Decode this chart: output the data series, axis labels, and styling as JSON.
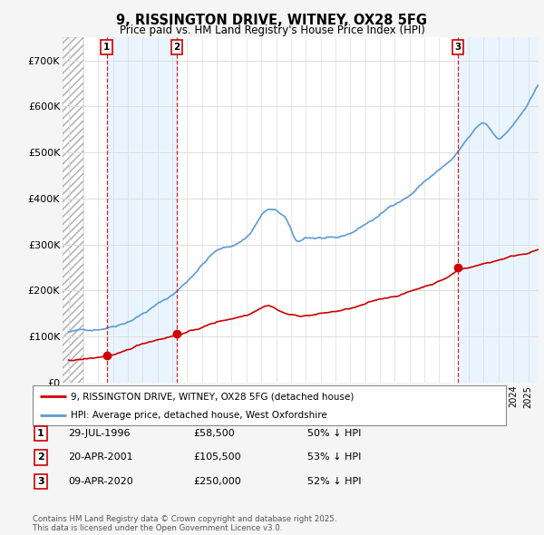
{
  "title": "9, RISSINGTON DRIVE, WITNEY, OX28 5FG",
  "subtitle": "Price paid vs. HM Land Registry's House Price Index (HPI)",
  "background_color": "#f5f5f5",
  "plot_bg_color": "#ffffff",
  "band_color": "#ddeeff",
  "hatch_color": "#cccccc",
  "ylim": [
    0,
    750000
  ],
  "yticks": [
    0,
    100000,
    200000,
    300000,
    400000,
    500000,
    600000,
    700000
  ],
  "ytick_labels": [
    "£0",
    "£100K",
    "£200K",
    "£300K",
    "£400K",
    "£500K",
    "£600K",
    "£700K"
  ],
  "xmin": 1993.6,
  "xmax": 2025.7,
  "red_line_label": "9, RISSINGTON DRIVE, WITNEY, OX28 5FG (detached house)",
  "blue_line_label": "HPI: Average price, detached house, West Oxfordshire",
  "transaction1_date": "29-JUL-1996",
  "transaction1_price": 58500,
  "transaction1_hpi": "50% ↓ HPI",
  "transaction1_x": 1996.57,
  "transaction2_date": "20-APR-2001",
  "transaction2_price": 105500,
  "transaction2_hpi": "53% ↓ HPI",
  "transaction2_x": 2001.29,
  "transaction3_date": "09-APR-2020",
  "transaction3_price": 250000,
  "transaction3_hpi": "52% ↓ HPI",
  "transaction3_x": 2020.27,
  "footnote": "Contains HM Land Registry data © Crown copyright and database right 2025.\nThis data is licensed under the Open Government Licence v3.0.",
  "red_color": "#cc0000",
  "blue_color": "#5b9bd5",
  "dashed_color": "#cc0000",
  "grid_color": "#dddddd"
}
